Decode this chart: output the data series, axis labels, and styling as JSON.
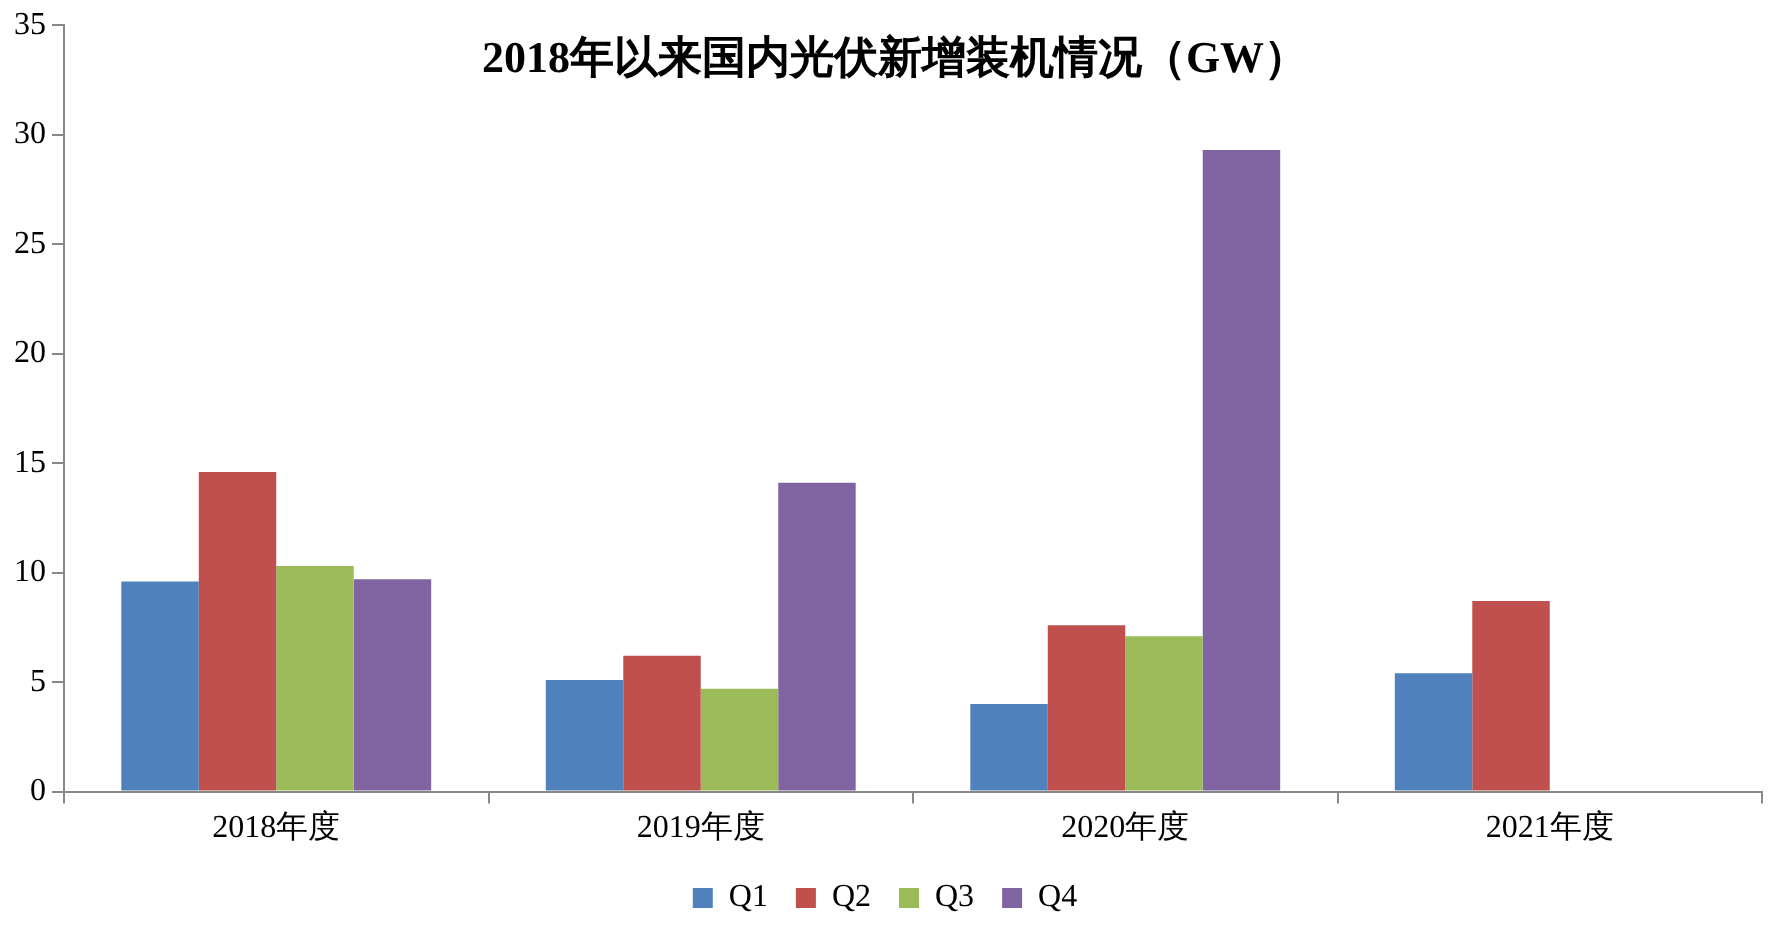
{
  "chart_data": {
    "type": "bar",
    "title": "2018年以来国内光伏新增装机情况（GW）",
    "categories": [
      "2018年度",
      "2019年度",
      "2020年度",
      "2021年度"
    ],
    "series": [
      {
        "name": "Q1",
        "color": "#4f81bd",
        "values": [
          9.6,
          5.1,
          4.0,
          5.4
        ]
      },
      {
        "name": "Q2",
        "color": "#c0504d",
        "values": [
          14.6,
          6.2,
          7.6,
          8.7
        ]
      },
      {
        "name": "Q3",
        "color": "#9bbb59",
        "values": [
          10.3,
          4.7,
          7.1,
          null
        ]
      },
      {
        "name": "Q4",
        "color": "#8064a2",
        "values": [
          9.7,
          14.1,
          29.3,
          null
        ]
      }
    ],
    "ylim": [
      0,
      35
    ],
    "yticks": [
      0,
      5,
      10,
      15,
      20,
      25,
      30,
      35
    ],
    "grid": false,
    "legend": "bottom"
  }
}
